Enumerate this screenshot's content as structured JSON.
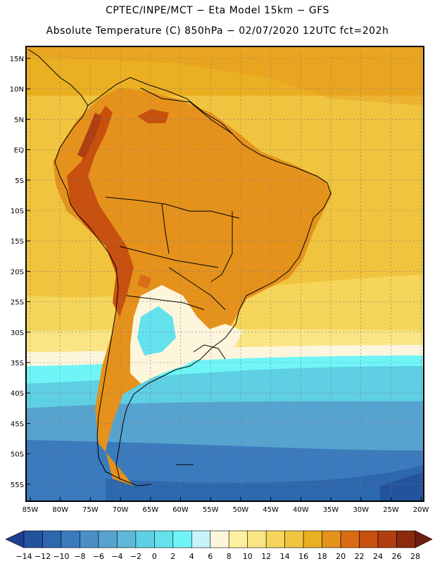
{
  "header": {
    "line1": "CPTEC/INPE/MCT  −   Eta Model 15km  −  GFS",
    "line2": "Absolute Temperature (C) 850hPa − 02/07/2020 12UTC fct=202h"
  },
  "map": {
    "lat_labels": [
      "15N",
      "10N",
      "5N",
      "EQ",
      "5S",
      "10S",
      "15S",
      "20S",
      "25S",
      "30S",
      "35S",
      "40S",
      "45S",
      "50S",
      "55S"
    ],
    "lon_labels": [
      "85W",
      "80W",
      "75W",
      "70W",
      "65W",
      "60W",
      "55W",
      "50W",
      "45W",
      "40W",
      "35W",
      "30W",
      "25W",
      "20W"
    ]
  },
  "colorbar": {
    "labels": [
      "−14",
      "−12",
      "−10",
      "−8",
      "−6",
      "−4",
      "−2",
      "0",
      "2",
      "4",
      "6",
      "8",
      "10",
      "12",
      "14",
      "16",
      "18",
      "20",
      "22",
      "24",
      "26",
      "28"
    ],
    "colors": [
      "#1c3f8f",
      "#24539e",
      "#2d67ad",
      "#3b7bbd",
      "#4a8fc6",
      "#57a3cf",
      "#60b8d8",
      "#5fcfe3",
      "#63e2ee",
      "#6ff5f7",
      "#c8f3fb",
      "#fdf6dc",
      "#fdf1a0",
      "#fae585",
      "#f5d55a",
      "#f0c43e",
      "#ebaf22",
      "#e5921c",
      "#da6c14",
      "#c8500f",
      "#b03e10",
      "#8b2a0c",
      "#6c1f0e"
    ]
  }
}
